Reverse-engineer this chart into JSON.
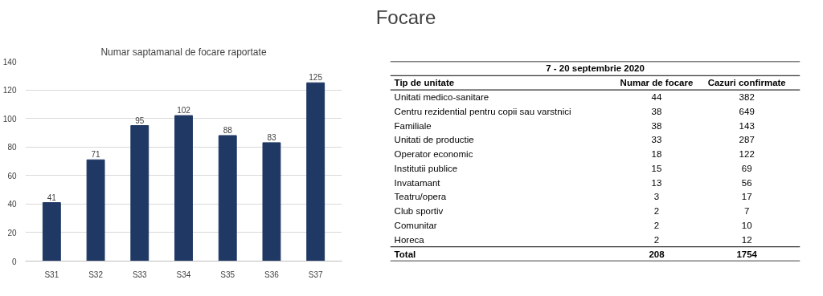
{
  "chart_data": [
    {
      "type": "bar",
      "title": "Numar saptamanal de focare raportate",
      "annotations": [
        "Focare"
      ],
      "categories": [
        "S31",
        "S32",
        "S33",
        "S34",
        "S35",
        "S36",
        "S37"
      ],
      "values": [
        41,
        71,
        95,
        102,
        88,
        83,
        125
      ],
      "color": "#1f3864",
      "ylim": [
        0,
        140
      ],
      "yticks": [
        0,
        20,
        40,
        60,
        80,
        100,
        120,
        140
      ],
      "grid": "y",
      "data_labels": true
    },
    {
      "type": "other",
      "title": "7 - 20 septembrie 2020",
      "legend_title": "Tip de unitate",
      "categories": [
        "Unitati medico-sanitare",
        "Centru rezidential pentru copii sau varstnici",
        "Familiale",
        "Unitati de productie",
        "Operator economic",
        "Institutii publice",
        "Invatamant",
        "Teatru/opera",
        "Club sportiv",
        "Comunitar",
        "Horeca"
      ],
      "series": [
        {
          "name": "Numar de focare",
          "values": [
            44,
            38,
            38,
            33,
            18,
            15,
            13,
            3,
            2,
            2,
            2
          ]
        },
        {
          "name": "Cazuri confirmate",
          "values": [
            382,
            649,
            143,
            287,
            122,
            69,
            56,
            17,
            7,
            10,
            12
          ]
        }
      ],
      "annotations": [
        "Total"
      ],
      "totals": [
        "208",
        "1754"
      ],
      "data_labels": true
    }
  ]
}
